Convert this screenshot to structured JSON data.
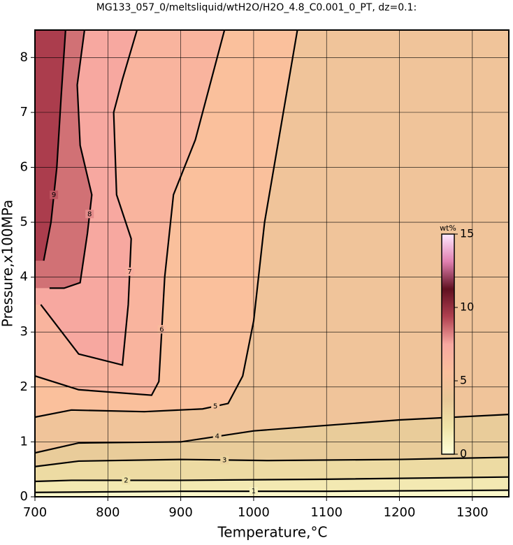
{
  "chart_data": {
    "type": "contour",
    "title": "MG133_057_0/meltsliquid/wtH2O/H2O_4.8_C0.001_0_PT, dz=0.1:",
    "x_label": "Temperature,°C",
    "y_label": "Pressure,x100MPa",
    "xlim": [
      700,
      1350
    ],
    "ylim": [
      0,
      8.5
    ],
    "xticks": [
      700,
      800,
      900,
      1000,
      1100,
      1200,
      1300
    ],
    "yticks": [
      0,
      1,
      2,
      3,
      4,
      5,
      6,
      7,
      8
    ],
    "grid": true,
    "contours": [
      {
        "level": 1,
        "x": [
          700,
          900,
          1100,
          1350
        ],
        "y": [
          0.08,
          0.1,
          0.1,
          0.12
        ]
      },
      {
        "level": 2,
        "x": [
          700,
          750,
          900,
          1100,
          1350
        ],
        "y": [
          0.28,
          0.3,
          0.3,
          0.32,
          0.36
        ]
      },
      {
        "level": 3,
        "x": [
          700,
          760,
          900,
          1020,
          1200,
          1350
        ],
        "y": [
          0.55,
          0.65,
          0.68,
          0.66,
          0.68,
          0.72
        ]
      },
      {
        "level": 4,
        "x": [
          700,
          760,
          900,
          1000,
          1100,
          1200,
          1350
        ],
        "y": [
          0.8,
          0.98,
          1.0,
          1.2,
          1.3,
          1.4,
          1.5
        ]
      },
      {
        "level": 5,
        "x": [
          700,
          750,
          850,
          930,
          965,
          985,
          1000,
          1015,
          1060
        ],
        "y": [
          1.45,
          1.58,
          1.55,
          1.6,
          1.7,
          2.2,
          3.2,
          5.0,
          8.5
        ]
      },
      {
        "level": 6,
        "x": [
          700,
          760,
          860,
          870,
          878,
          890,
          920,
          960
        ],
        "y": [
          2.2,
          1.95,
          1.85,
          2.1,
          4.0,
          5.5,
          6.5,
          8.5
        ]
      },
      {
        "level": 7,
        "x": [
          708,
          760,
          820,
          828,
          832,
          812,
          808,
          820,
          840
        ],
        "y": [
          3.5,
          2.6,
          2.4,
          3.5,
          4.7,
          5.5,
          7.0,
          7.6,
          8.5
        ]
      },
      {
        "level": 8,
        "x": [
          720,
          740,
          762,
          772,
          778,
          762,
          758,
          768
        ],
        "y": [
          3.8,
          3.8,
          3.9,
          4.8,
          5.5,
          6.4,
          7.5,
          8.5
        ]
      },
      {
        "level": 9,
        "x": [
          712,
          722,
          730,
          736,
          742
        ],
        "y": [
          4.3,
          5.0,
          6.0,
          7.3,
          8.5
        ]
      }
    ],
    "colorbar": {
      "label": "wt%",
      "lim": [
        0,
        15
      ],
      "ticks": [
        0,
        5,
        10,
        15
      ],
      "colors": [
        "#ffffd8",
        "#f0e4a8",
        "#e8c898",
        "#fbbf9c",
        "#f7a8a0",
        "#b04050",
        "#601020",
        "#e080b0",
        "#ffe8ff"
      ]
    }
  }
}
